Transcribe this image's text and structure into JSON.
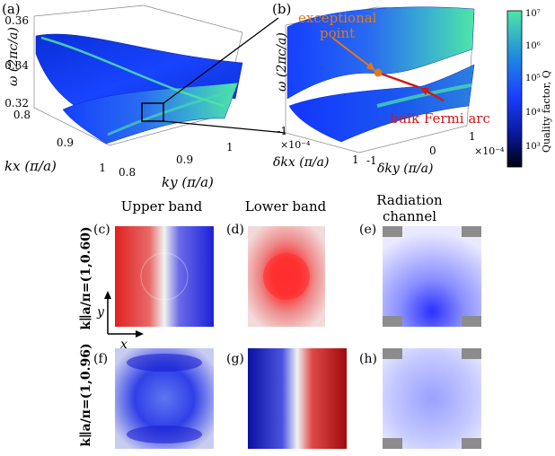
{
  "panel_a": {
    "label": "(a)",
    "z_axis_label": "ω (2πc/a)",
    "z_ticks": [
      "0.36",
      "0.34",
      "0.32"
    ],
    "kx_label": "kx (π/a)",
    "kx_ticks": [
      "0.8",
      "0.9",
      "1"
    ],
    "ky_label": "ky (π/a)",
    "ky_ticks": [
      "0.8",
      "0.9",
      "1"
    ]
  },
  "panel_b": {
    "label": "(b)",
    "z_axis_label": "ω (2πc/a)",
    "ep_annotation_line1": "exceptional",
    "ep_annotation_line2": "point",
    "arc_annotation": "bulk Fermi arc",
    "dkx_label": "δkx (π/a)",
    "dkx_multiplier": "×10⁻⁴",
    "dkx_ticks": [
      "-1",
      "1"
    ],
    "dky_label": "δky (π/a)",
    "dky_multiplier": "×10⁻⁴",
    "dky_ticks": [
      "-1",
      "0",
      "1"
    ]
  },
  "colorbar": {
    "label": "Quality factor, Q",
    "ticks": [
      "10⁷",
      "10⁶",
      "10⁵",
      "10⁴",
      "10³"
    ],
    "colors": {
      "high": "#4ee6a6",
      "mid": "#1a3fff",
      "low": "#000010"
    }
  },
  "columns": {
    "upper": "Upper band",
    "lower": "Lower band",
    "radiation_line1": "Radiation",
    "radiation_line2": "channel"
  },
  "rows": {
    "row1_label": "k∥a/π=(1,0.60)",
    "row2_label": "k∥a/π=(1,0.96)"
  },
  "panels": {
    "c": "(c)",
    "d": "(d)",
    "e": "(e)",
    "f": "(f)",
    "g": "(g)",
    "h": "(h)"
  },
  "axes_inset": {
    "x": "x",
    "y": "y"
  }
}
